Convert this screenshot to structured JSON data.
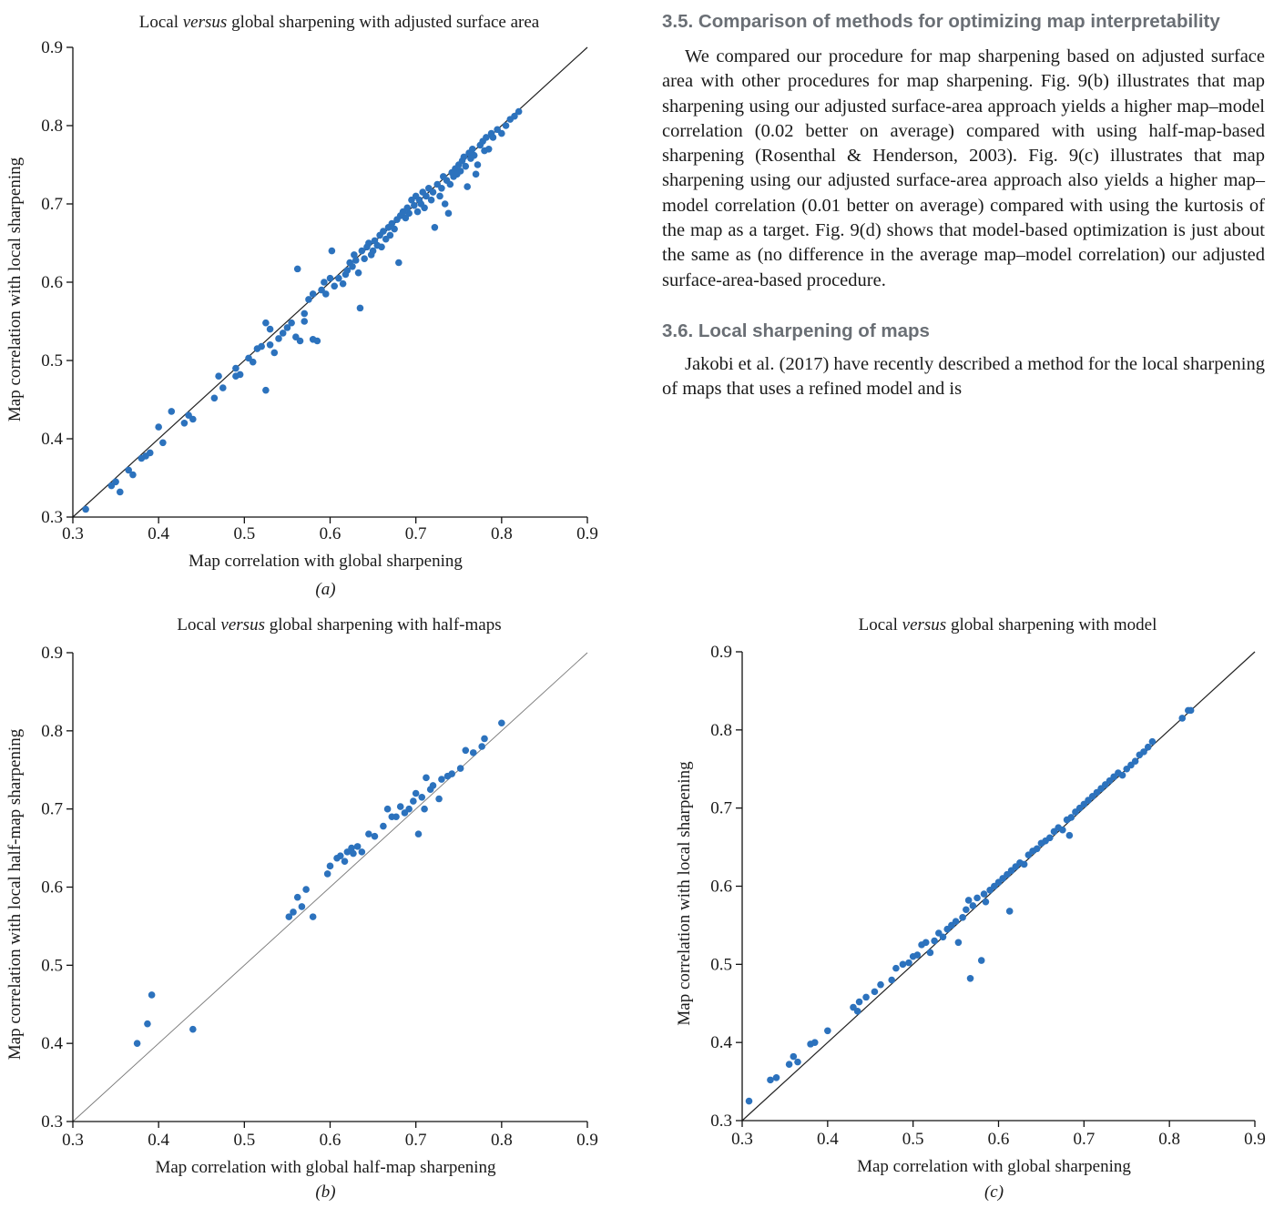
{
  "text": {
    "section_35_heading": "3.5. Comparison of methods for optimizing map interpretability",
    "section_35_body": "We compared our procedure for map sharpening based on adjusted surface area with other procedures for map sharpening. Fig. 9(b) illustrates that map sharpening using our adjusted surface-area approach yields a higher map–model correlation (0.02 better on average) compared with using half-map-based sharpening (Rosenthal & Henderson, 2003). Fig. 9(c) illustrates that map sharpening using our adjusted surface-area approach also yields a higher map–model correlation (0.01 better on average) compared with using the kurtosis of the map as a target. Fig. 9(d) shows that model-based optimization is just about the same as (no difference in the average map–model correlation) our adjusted surface-area-based procedure.",
    "section_36_heading": "3.6. Local sharpening of maps",
    "section_36_body": "Jakobi et al. (2017) have recently described a method for the local sharpening of maps that uses a refined model and is"
  },
  "chart_data": [
    {
      "type": "scatter",
      "panel_label": "(a)",
      "title_pre": "Local ",
      "title_em": "versus",
      "title_post": " global sharpening with adjusted surface area",
      "xlabel": "Map correlation with global sharpening",
      "ylabel": "Map correlation with local sharpening",
      "xlim": [
        0.3,
        0.9
      ],
      "ylim": [
        0.3,
        0.9
      ],
      "x_ticks": [
        "0.3",
        "0.4",
        "0.5",
        "0.6",
        "0.7",
        "0.8",
        "0.9"
      ],
      "y_ticks": [
        "0.3",
        "0.4",
        "0.5",
        "0.6",
        "0.7",
        "0.8",
        "0.9"
      ],
      "reference_line": "y = x",
      "marker_color": "#2c72bd",
      "points": [
        [
          0.315,
          0.31
        ],
        [
          0.345,
          0.34
        ],
        [
          0.35,
          0.345
        ],
        [
          0.355,
          0.332
        ],
        [
          0.365,
          0.36
        ],
        [
          0.37,
          0.354
        ],
        [
          0.38,
          0.375
        ],
        [
          0.385,
          0.378
        ],
        [
          0.39,
          0.382
        ],
        [
          0.4,
          0.415
        ],
        [
          0.405,
          0.395
        ],
        [
          0.415,
          0.435
        ],
        [
          0.43,
          0.42
        ],
        [
          0.435,
          0.43
        ],
        [
          0.44,
          0.425
        ],
        [
          0.465,
          0.452
        ],
        [
          0.47,
          0.48
        ],
        [
          0.475,
          0.465
        ],
        [
          0.49,
          0.48
        ],
        [
          0.49,
          0.49
        ],
        [
          0.495,
          0.482
        ],
        [
          0.505,
          0.503
        ],
        [
          0.51,
          0.498
        ],
        [
          0.515,
          0.515
        ],
        [
          0.52,
          0.518
        ],
        [
          0.525,
          0.462
        ],
        [
          0.525,
          0.548
        ],
        [
          0.53,
          0.52
        ],
        [
          0.53,
          0.54
        ],
        [
          0.535,
          0.51
        ],
        [
          0.54,
          0.528
        ],
        [
          0.545,
          0.535
        ],
        [
          0.55,
          0.542
        ],
        [
          0.555,
          0.548
        ],
        [
          0.56,
          0.53
        ],
        [
          0.562,
          0.617
        ],
        [
          0.565,
          0.525
        ],
        [
          0.57,
          0.55
        ],
        [
          0.57,
          0.56
        ],
        [
          0.575,
          0.578
        ],
        [
          0.58,
          0.585
        ],
        [
          0.58,
          0.527
        ],
        [
          0.585,
          0.525
        ],
        [
          0.59,
          0.59
        ],
        [
          0.593,
          0.6
        ],
        [
          0.595,
          0.585
        ],
        [
          0.6,
          0.605
        ],
        [
          0.602,
          0.64
        ],
        [
          0.605,
          0.595
        ],
        [
          0.61,
          0.605
        ],
        [
          0.615,
          0.598
        ],
        [
          0.618,
          0.61
        ],
        [
          0.62,
          0.615
        ],
        [
          0.623,
          0.625
        ],
        [
          0.626,
          0.62
        ],
        [
          0.628,
          0.635
        ],
        [
          0.63,
          0.628
        ],
        [
          0.633,
          0.612
        ],
        [
          0.635,
          0.567
        ],
        [
          0.637,
          0.64
        ],
        [
          0.64,
          0.63
        ],
        [
          0.643,
          0.645
        ],
        [
          0.645,
          0.65
        ],
        [
          0.648,
          0.635
        ],
        [
          0.65,
          0.64
        ],
        [
          0.652,
          0.653
        ],
        [
          0.655,
          0.647
        ],
        [
          0.658,
          0.66
        ],
        [
          0.66,
          0.645
        ],
        [
          0.662,
          0.665
        ],
        [
          0.665,
          0.655
        ],
        [
          0.668,
          0.67
        ],
        [
          0.67,
          0.66
        ],
        [
          0.672,
          0.675
        ],
        [
          0.675,
          0.668
        ],
        [
          0.678,
          0.68
        ],
        [
          0.68,
          0.625
        ],
        [
          0.682,
          0.685
        ],
        [
          0.685,
          0.69
        ],
        [
          0.688,
          0.682
        ],
        [
          0.69,
          0.695
        ],
        [
          0.692,
          0.688
        ],
        [
          0.695,
          0.705
        ],
        [
          0.698,
          0.698
        ],
        [
          0.7,
          0.71
        ],
        [
          0.702,
          0.69
        ],
        [
          0.704,
          0.705
        ],
        [
          0.706,
          0.7
        ],
        [
          0.708,
          0.715
        ],
        [
          0.71,
          0.695
        ],
        [
          0.712,
          0.71
        ],
        [
          0.715,
          0.72
        ],
        [
          0.718,
          0.705
        ],
        [
          0.72,
          0.715
        ],
        [
          0.722,
          0.67
        ],
        [
          0.725,
          0.725
        ],
        [
          0.728,
          0.71
        ],
        [
          0.73,
          0.72
        ],
        [
          0.732,
          0.735
        ],
        [
          0.734,
          0.7
        ],
        [
          0.736,
          0.73
        ],
        [
          0.738,
          0.688
        ],
        [
          0.74,
          0.725
        ],
        [
          0.742,
          0.74
        ],
        [
          0.744,
          0.735
        ],
        [
          0.746,
          0.745
        ],
        [
          0.748,
          0.738
        ],
        [
          0.75,
          0.75
        ],
        [
          0.752,
          0.742
        ],
        [
          0.754,
          0.755
        ],
        [
          0.756,
          0.76
        ],
        [
          0.758,
          0.748
        ],
        [
          0.76,
          0.722
        ],
        [
          0.762,
          0.765
        ],
        [
          0.764,
          0.758
        ],
        [
          0.766,
          0.77
        ],
        [
          0.768,
          0.762
        ],
        [
          0.77,
          0.738
        ],
        [
          0.772,
          0.75
        ],
        [
          0.775,
          0.775
        ],
        [
          0.778,
          0.78
        ],
        [
          0.78,
          0.768
        ],
        [
          0.782,
          0.785
        ],
        [
          0.785,
          0.77
        ],
        [
          0.788,
          0.79
        ],
        [
          0.79,
          0.785
        ],
        [
          0.795,
          0.795
        ],
        [
          0.8,
          0.79
        ],
        [
          0.805,
          0.8
        ],
        [
          0.81,
          0.808
        ],
        [
          0.815,
          0.812
        ],
        [
          0.82,
          0.818
        ]
      ]
    },
    {
      "type": "scatter",
      "panel_label": "(b)",
      "title_pre": "Local ",
      "title_em": "versus",
      "title_post": " global sharpening with half-maps",
      "xlabel": "Map correlation with global half-map sharpening",
      "ylabel": "Map correlation with local half-map sharpening",
      "xlim": [
        0.3,
        0.9
      ],
      "ylim": [
        0.3,
        0.9
      ],
      "x_ticks": [
        "0.3",
        "0.4",
        "0.5",
        "0.6",
        "0.7",
        "0.8",
        "0.9"
      ],
      "y_ticks": [
        "0.3",
        "0.4",
        "0.5",
        "0.6",
        "0.7",
        "0.8",
        "0.9"
      ],
      "reference_line": "y = x",
      "marker_color": "#2c72bd",
      "points": [
        [
          0.375,
          0.4
        ],
        [
          0.387,
          0.425
        ],
        [
          0.392,
          0.462
        ],
        [
          0.44,
          0.418
        ],
        [
          0.552,
          0.562
        ],
        [
          0.557,
          0.568
        ],
        [
          0.562,
          0.587
        ],
        [
          0.567,
          0.575
        ],
        [
          0.572,
          0.597
        ],
        [
          0.58,
          0.562
        ],
        [
          0.597,
          0.617
        ],
        [
          0.6,
          0.627
        ],
        [
          0.608,
          0.637
        ],
        [
          0.612,
          0.64
        ],
        [
          0.617,
          0.633
        ],
        [
          0.62,
          0.645
        ],
        [
          0.625,
          0.65
        ],
        [
          0.627,
          0.643
        ],
        [
          0.632,
          0.652
        ],
        [
          0.637,
          0.645
        ],
        [
          0.645,
          0.668
        ],
        [
          0.652,
          0.665
        ],
        [
          0.662,
          0.678
        ],
        [
          0.667,
          0.7
        ],
        [
          0.672,
          0.69
        ],
        [
          0.677,
          0.69
        ],
        [
          0.682,
          0.703
        ],
        [
          0.687,
          0.695
        ],
        [
          0.692,
          0.7
        ],
        [
          0.697,
          0.71
        ],
        [
          0.7,
          0.72
        ],
        [
          0.703,
          0.668
        ],
        [
          0.707,
          0.715
        ],
        [
          0.71,
          0.7
        ],
        [
          0.712,
          0.74
        ],
        [
          0.717,
          0.725
        ],
        [
          0.72,
          0.73
        ],
        [
          0.727,
          0.713
        ],
        [
          0.73,
          0.738
        ],
        [
          0.737,
          0.742
        ],
        [
          0.742,
          0.745
        ],
        [
          0.752,
          0.752
        ],
        [
          0.758,
          0.775
        ],
        [
          0.767,
          0.772
        ],
        [
          0.777,
          0.78
        ],
        [
          0.78,
          0.79
        ],
        [
          0.8,
          0.81
        ]
      ]
    },
    {
      "type": "scatter",
      "panel_label": "(c)",
      "title_pre": "Local ",
      "title_em": "versus",
      "title_post": " global sharpening with model",
      "xlabel": "Map correlation with global sharpening",
      "ylabel": "Map correlation with local sharpening",
      "xlim": [
        0.3,
        0.9
      ],
      "ylim": [
        0.3,
        0.9
      ],
      "x_ticks": [
        "0.3",
        "0.4",
        "0.5",
        "0.6",
        "0.7",
        "0.8",
        "0.9"
      ],
      "y_ticks": [
        "0.3",
        "0.4",
        "0.5",
        "0.6",
        "0.7",
        "0.8",
        "0.9"
      ],
      "reference_line": "y = x",
      "marker_color": "#2c72bd",
      "points": [
        [
          0.308,
          0.325
        ],
        [
          0.333,
          0.352
        ],
        [
          0.34,
          0.355
        ],
        [
          0.355,
          0.372
        ],
        [
          0.36,
          0.382
        ],
        [
          0.365,
          0.375
        ],
        [
          0.38,
          0.398
        ],
        [
          0.385,
          0.4
        ],
        [
          0.4,
          0.415
        ],
        [
          0.43,
          0.445
        ],
        [
          0.435,
          0.44
        ],
        [
          0.437,
          0.452
        ],
        [
          0.445,
          0.458
        ],
        [
          0.455,
          0.465
        ],
        [
          0.462,
          0.474
        ],
        [
          0.475,
          0.48
        ],
        [
          0.48,
          0.495
        ],
        [
          0.488,
          0.5
        ],
        [
          0.495,
          0.502
        ],
        [
          0.5,
          0.51
        ],
        [
          0.505,
          0.512
        ],
        [
          0.51,
          0.525
        ],
        [
          0.515,
          0.528
        ],
        [
          0.52,
          0.515
        ],
        [
          0.525,
          0.53
        ],
        [
          0.53,
          0.54
        ],
        [
          0.535,
          0.535
        ],
        [
          0.54,
          0.545
        ],
        [
          0.545,
          0.55
        ],
        [
          0.55,
          0.555
        ],
        [
          0.553,
          0.528
        ],
        [
          0.558,
          0.56
        ],
        [
          0.562,
          0.57
        ],
        [
          0.565,
          0.582
        ],
        [
          0.567,
          0.482
        ],
        [
          0.57,
          0.575
        ],
        [
          0.575,
          0.585
        ],
        [
          0.58,
          0.505
        ],
        [
          0.583,
          0.59
        ],
        [
          0.585,
          0.58
        ],
        [
          0.59,
          0.595
        ],
        [
          0.595,
          0.6
        ],
        [
          0.6,
          0.605
        ],
        [
          0.605,
          0.61
        ],
        [
          0.61,
          0.615
        ],
        [
          0.613,
          0.568
        ],
        [
          0.615,
          0.62
        ],
        [
          0.62,
          0.625
        ],
        [
          0.625,
          0.63
        ],
        [
          0.63,
          0.628
        ],
        [
          0.635,
          0.64
        ],
        [
          0.64,
          0.645
        ],
        [
          0.645,
          0.648
        ],
        [
          0.65,
          0.655
        ],
        [
          0.655,
          0.658
        ],
        [
          0.66,
          0.662
        ],
        [
          0.665,
          0.67
        ],
        [
          0.67,
          0.675
        ],
        [
          0.675,
          0.672
        ],
        [
          0.68,
          0.685
        ],
        [
          0.683,
          0.665
        ],
        [
          0.685,
          0.688
        ],
        [
          0.69,
          0.695
        ],
        [
          0.695,
          0.7
        ],
        [
          0.7,
          0.705
        ],
        [
          0.705,
          0.71
        ],
        [
          0.71,
          0.715
        ],
        [
          0.715,
          0.72
        ],
        [
          0.72,
          0.725
        ],
        [
          0.725,
          0.73
        ],
        [
          0.73,
          0.735
        ],
        [
          0.735,
          0.74
        ],
        [
          0.74,
          0.745
        ],
        [
          0.745,
          0.742
        ],
        [
          0.75,
          0.75
        ],
        [
          0.755,
          0.755
        ],
        [
          0.76,
          0.76
        ],
        [
          0.765,
          0.768
        ],
        [
          0.77,
          0.772
        ],
        [
          0.775,
          0.778
        ],
        [
          0.78,
          0.785
        ],
        [
          0.815,
          0.815
        ],
        [
          0.822,
          0.825
        ],
        [
          0.825,
          0.825
        ]
      ]
    }
  ]
}
